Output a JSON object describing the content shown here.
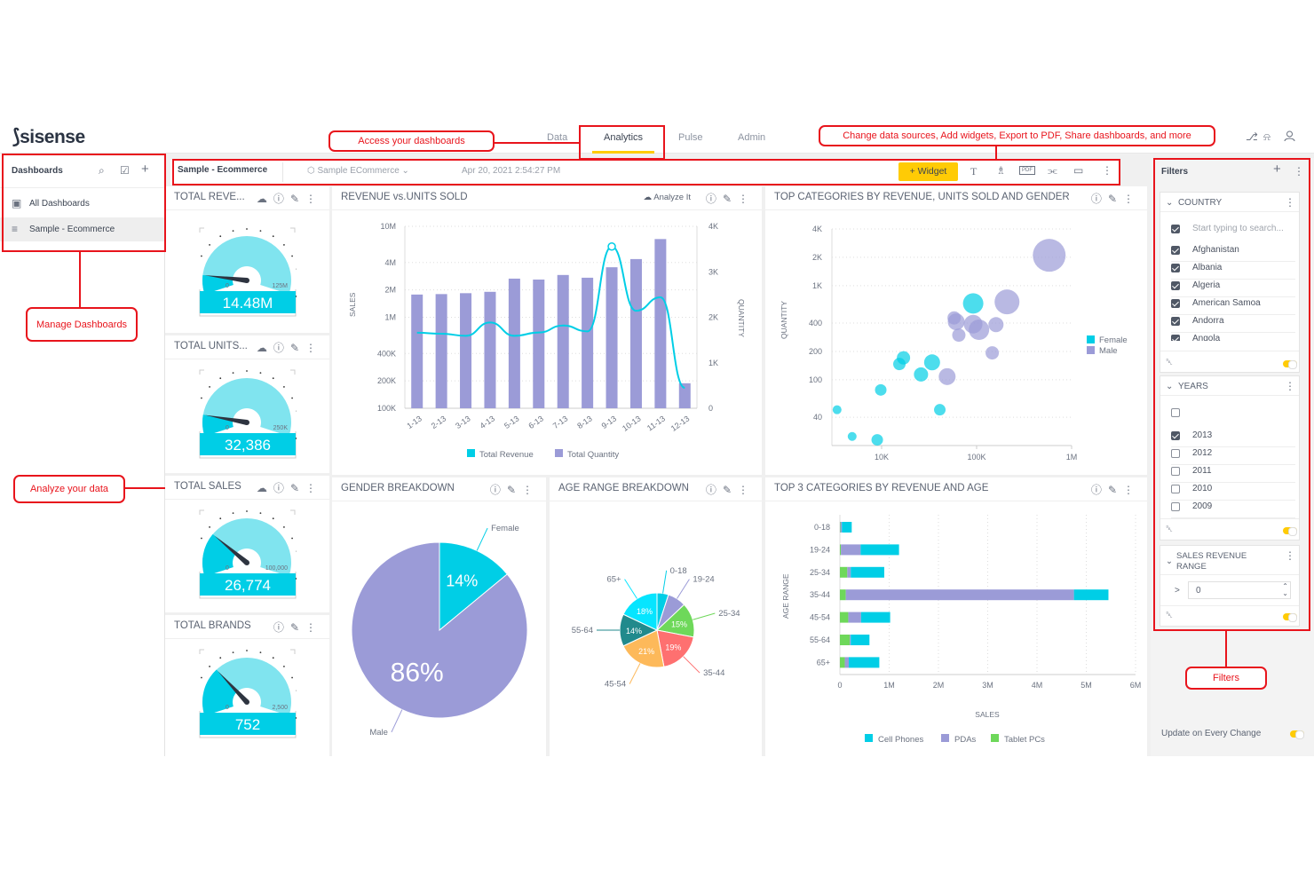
{
  "app": {
    "logo": "sisense",
    "nav": [
      "Data",
      "Analytics",
      "Pulse",
      "Admin"
    ],
    "active_nav": "Analytics",
    "accent": "#ffcb05"
  },
  "sidebar": {
    "title": "Dashboards",
    "items": [
      {
        "label": "All Dashboards"
      },
      {
        "label": "Sample - Ecommerce",
        "selected": true
      }
    ]
  },
  "toolbar": {
    "dashboard_title": "Sample - Ecommerce",
    "datasource": "Sample ECommerce",
    "timestamp": "Apr 20, 2021 2:54:27 PM",
    "widget_button": "+ Widget"
  },
  "gauges": [
    {
      "title": "TOTAL REVE...",
      "value": "14.48M",
      "min": "0",
      "max": "125M",
      "fraction": 0.116
    },
    {
      "title": "TOTAL UNITS...",
      "value": "32,386",
      "min": "0",
      "max": "250K",
      "fraction": 0.13
    },
    {
      "title": "TOTAL SALES",
      "value": "26,774",
      "min": "0",
      "max": "100,000",
      "fraction": 0.268
    },
    {
      "title": "TOTAL BRANDS",
      "value": "752",
      "min": "0",
      "max": "2,500",
      "fraction": 0.3
    }
  ],
  "widgets": {
    "revenue": {
      "title": "REVENUE vs.UNITS SOLD",
      "analyze": "Analyze It"
    },
    "scatter": {
      "title": "TOP CATEGORIES BY REVENUE, UNITS SOLD AND GENDER"
    },
    "gender": {
      "title": "GENDER BREAKDOWN"
    },
    "age": {
      "title": "AGE RANGE BREAKDOWN"
    },
    "top3": {
      "title": "TOP 3 CATEGORIES BY REVENUE AND AGE"
    }
  },
  "chart_data": [
    {
      "type": "bar+line",
      "categories": [
        "1-13",
        "2-13",
        "3-13",
        "4-13",
        "5-13",
        "6-13",
        "7-13",
        "8-13",
        "9-13",
        "10-13",
        "11-13",
        "12-13"
      ],
      "series": [
        {
          "name": "Total Revenue",
          "type": "line",
          "axis": "left",
          "color": "#00cee6",
          "values": [
            676000,
            660000,
            626000,
            877000,
            626000,
            680000,
            813000,
            700000,
            6000000,
            1180000,
            1660000,
            168000
          ]
        },
        {
          "name": "Total Quantity",
          "type": "bar",
          "axis": "right",
          "color": "#9b9bd7",
          "values": [
            2500,
            2510,
            2530,
            2560,
            2850,
            2830,
            2930,
            2870,
            3100,
            3280,
            3720,
            550
          ]
        }
      ],
      "ylabel": "SALES",
      "y2label": "QUANTITY",
      "yscale": "log",
      "ylim": [
        100000,
        10000000
      ],
      "yticks": [
        "10M",
        "4M",
        "2M",
        "1M",
        "400K",
        "200K",
        "100K"
      ],
      "ytick_values": [
        10000000,
        4000000,
        2000000,
        1000000,
        400000,
        200000,
        100000
      ],
      "y2lim": [
        0,
        4000
      ],
      "y2ticks": [
        "4K",
        "3K",
        "2K",
        "1K",
        "0"
      ],
      "y2tick_values": [
        4000,
        3000,
        2000,
        1000,
        0
      ],
      "grid": true,
      "legend": "bottom"
    },
    {
      "type": "scatter",
      "xscale": "log",
      "yscale": "log",
      "xlim": [
        3000,
        1000000
      ],
      "ylim": [
        20,
        4000
      ],
      "ylabel": "QUANTITY",
      "xticks": [
        "10K",
        "100K",
        "1M"
      ],
      "xtick_values": [
        10000,
        100000,
        1000000
      ],
      "yticks": [
        "4K",
        "2K",
        "1K",
        "400",
        "200",
        "100",
        "40"
      ],
      "ytick_values": [
        4000,
        2000,
        1000,
        400,
        200,
        100,
        40
      ],
      "legend": "right",
      "grid": true,
      "series": [
        {
          "name": "Female",
          "color": "#00cee6",
          "points": [
            [
              3400,
              48,
              1
            ],
            [
              4900,
              25,
              1
            ],
            [
              9000,
              23,
              1.3
            ],
            [
              9800,
              78,
              1.3
            ],
            [
              15400,
              147,
              1.4
            ],
            [
              17000,
              171,
              1.5
            ],
            [
              26000,
              114,
              1.6
            ],
            [
              34000,
              153,
              1.8
            ],
            [
              41000,
              48,
              1.3
            ],
            [
              92000,
              647,
              2.3
            ]
          ]
        },
        {
          "name": "Male",
          "color": "#9b9bd7",
          "points": [
            [
              581000,
              2100,
              3.7
            ],
            [
              209000,
              672,
              2.8
            ],
            [
              58000,
              454,
              1.5
            ],
            [
              61000,
              413,
              1.9
            ],
            [
              92000,
              390,
              2.1
            ],
            [
              106000,
              340,
              2.3
            ],
            [
              160000,
              385,
              1.7
            ],
            [
              65000,
              298,
              1.5
            ],
            [
              146000,
              193,
              1.5
            ],
            [
              49000,
              108,
              1.9
            ]
          ]
        }
      ]
    },
    {
      "type": "pie",
      "slices": [
        {
          "label": "Female",
          "value": 14,
          "text": "14%",
          "color": "#00cee6"
        },
        {
          "label": "Male",
          "value": 86,
          "text": "86%",
          "color": "#9b9bd7"
        }
      ]
    },
    {
      "type": "pie",
      "slices": [
        {
          "label": "0-18",
          "value": 5,
          "text": "",
          "color": "#00cee6"
        },
        {
          "label": "19-24",
          "value": 8,
          "text": "",
          "color": "#9b9bd7"
        },
        {
          "label": "25-34",
          "value": 15,
          "text": "15%",
          "color": "#6ed85a"
        },
        {
          "label": "35-44",
          "value": 19,
          "text": "19%",
          "color": "#fe7070"
        },
        {
          "label": "45-54",
          "value": 21,
          "text": "21%",
          "color": "#fdb95a"
        },
        {
          "label": "55-64",
          "value": 14,
          "text": "14%",
          "color": "#218a8c"
        },
        {
          "label": "65+",
          "value": 18,
          "text": "18%",
          "color": "#06e5ff"
        }
      ]
    },
    {
      "type": "bar",
      "orientation": "horizontal",
      "stacked": true,
      "categories": [
        "0-18",
        "19-24",
        "25-34",
        "35-44",
        "45-54",
        "55-64",
        "65+"
      ],
      "series": [
        {
          "name": "Tablet PCs",
          "color": "#6ed85a",
          "values": [
            10000,
            20000,
            150000,
            120000,
            170000,
            200000,
            100000
          ]
        },
        {
          "name": "PDAs",
          "color": "#9b9bd7",
          "values": [
            30000,
            400000,
            70000,
            4630000,
            260000,
            20000,
            80000
          ]
        },
        {
          "name": "Cell Phones",
          "color": "#00cee6",
          "values": [
            200000,
            780000,
            680000,
            700000,
            590000,
            380000,
            620000
          ]
        }
      ],
      "legend_order": [
        "Cell Phones",
        "PDAs",
        "Tablet PCs"
      ],
      "xlabel": "SALES",
      "ylabel": "AGE RANGE",
      "xlim": [
        0,
        6000000
      ],
      "xticks": [
        "0",
        "1M",
        "2M",
        "3M",
        "4M",
        "5M",
        "6M"
      ],
      "grid": true,
      "legend": "bottom"
    }
  ],
  "filters": {
    "title": "Filters",
    "country": {
      "title": "COUNTRY",
      "placeholder": "Start typing to search...",
      "items": [
        {
          "label": "Afghanistan",
          "checked": true
        },
        {
          "label": "Albania",
          "checked": true
        },
        {
          "label": "Algeria",
          "checked": true
        },
        {
          "label": "American Samoa",
          "checked": true
        },
        {
          "label": "Andorra",
          "checked": true
        },
        {
          "label": "Angola",
          "checked": true
        }
      ]
    },
    "years": {
      "title": "YEARS",
      "items": [
        {
          "label": "2013",
          "checked": true
        },
        {
          "label": "2012",
          "checked": false
        },
        {
          "label": "2011",
          "checked": false
        },
        {
          "label": "2010",
          "checked": false
        },
        {
          "label": "2009",
          "checked": false
        }
      ]
    },
    "revenue": {
      "title1": "SALES REVENUE",
      "title2": "RANGE",
      "operator": ">",
      "value": "0"
    },
    "update_label": "Update on Every Change"
  },
  "annotations": {
    "access": "Access your dashboards",
    "change": "Change data sources, Add widgets, Export to PDF, Share dashboards, and more",
    "manage": "Manage Dashboards",
    "analyze": "Analyze your data",
    "filters": "Filters",
    "color": "#e8141c"
  }
}
